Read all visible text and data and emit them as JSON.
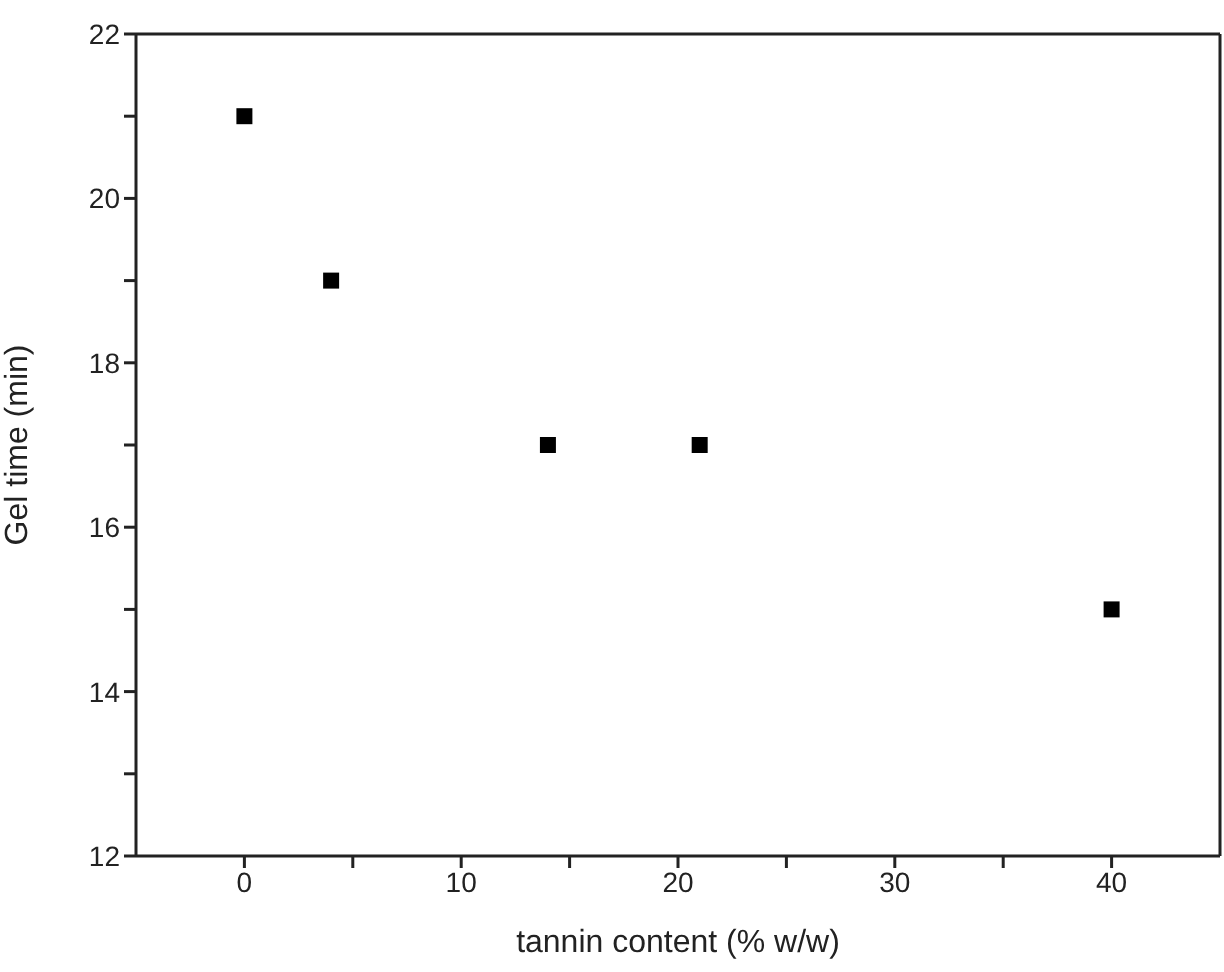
{
  "chart_data": {
    "type": "scatter",
    "xlabel": "tannin content (% w/w)",
    "ylabel": "Gel time (min)",
    "x": [
      0,
      4,
      14,
      21,
      40
    ],
    "series": [
      {
        "color": "#000000",
        "values": [
          21,
          19,
          17,
          17,
          15
        ]
      }
    ],
    "marker": "square",
    "xlim": [
      -5,
      45
    ],
    "xticks": [
      0,
      {
        "value": 5,
        "label": null
      },
      10,
      {
        "value": 15,
        "label": null
      },
      20,
      {
        "value": 25,
        "label": null
      },
      30,
      {
        "value": 35,
        "label": null
      },
      40
    ],
    "ylim": [
      12,
      22
    ],
    "yticks": [
      12,
      {
        "value": 13,
        "label": null
      },
      14,
      {
        "value": 15,
        "label": null
      },
      16,
      {
        "value": 17,
        "label": null
      },
      18,
      {
        "value": 19,
        "label": null
      },
      20,
      {
        "value": 21,
        "label": null
      },
      22
    ],
    "grid": false
  }
}
